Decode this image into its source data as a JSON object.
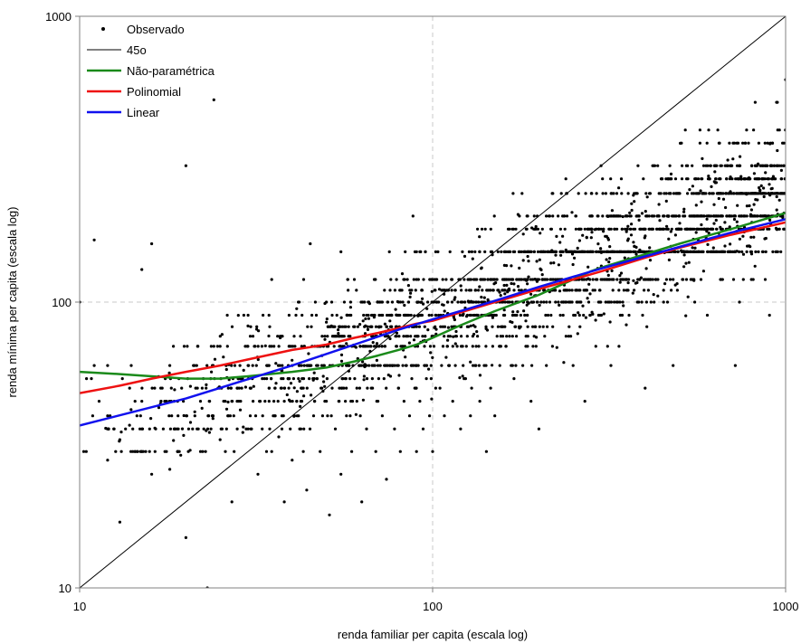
{
  "chart_data": {
    "type": "scatter",
    "xlabel": "renda familiar per capita (escala log)",
    "ylabel": "renda mínima per capita (escala log)",
    "xscale": "log",
    "yscale": "log",
    "xlim": [
      10,
      1000
    ],
    "ylim": [
      10,
      1000
    ],
    "x_ticks": [
      "10",
      "100",
      "1000"
    ],
    "y_ticks": [
      "10",
      "100",
      "1000"
    ],
    "grid": "dashed at 100 on both axes",
    "legend_position": "top-left",
    "colors": {
      "observado": "#000000",
      "line45": "#000000",
      "nao_parametrica": "#1a8a1a",
      "polinomial": "#ee1111",
      "linear": "#1111ee",
      "grid": "#c8c8c8"
    },
    "legend": [
      {
        "key": "observado",
        "label": "Observado"
      },
      {
        "key": "line45",
        "label": "45o"
      },
      {
        "key": "nao_parametrica",
        "label": "Não-paramétrica"
      },
      {
        "key": "polinomial",
        "label": "Polinomial"
      },
      {
        "key": "linear",
        "label": "Linear"
      }
    ],
    "series": [
      {
        "key": "line45",
        "name": "45o",
        "x": [
          10,
          1000
        ],
        "y": [
          10,
          1000
        ]
      },
      {
        "key": "nao_parametrica",
        "name": "Não-paramétrica",
        "x": [
          10,
          13,
          16,
          20,
          25,
          30,
          40,
          50,
          60,
          70,
          80,
          90,
          100,
          120,
          150,
          200,
          250,
          280,
          300,
          400,
          500,
          700,
          1000
        ],
        "y": [
          57,
          56,
          55,
          54,
          54,
          55,
          57,
          59,
          62,
          65,
          68,
          71,
          75,
          83,
          93,
          106,
          120,
          128,
          132,
          147,
          160,
          180,
          205
        ]
      },
      {
        "key": "polinomial",
        "name": "Polinomial",
        "x": [
          10,
          13,
          16,
          20,
          25,
          30,
          40,
          50,
          60,
          70,
          80,
          90,
          100,
          120,
          150,
          200,
          250,
          300,
          400,
          500,
          700,
          1000
        ],
        "y": [
          48,
          51,
          54,
          57,
          60,
          63,
          68,
          71,
          75,
          78,
          81,
          84,
          86,
          92,
          100,
          111,
          120,
          128,
          143,
          155,
          172,
          190
        ]
      },
      {
        "key": "linear",
        "name": "Linear",
        "x": [
          10,
          20,
          40,
          60,
          80,
          100,
          150,
          200,
          300,
          500,
          700,
          1000
        ],
        "y": [
          37,
          46,
          60,
          71,
          80,
          87,
          101,
          113,
          131,
          156,
          175,
          195
        ]
      }
    ],
    "observado": {
      "name": "Observado",
      "y_levels": [
        30,
        36,
        40,
        45,
        50,
        54,
        60,
        70,
        76,
        82,
        90,
        100,
        110,
        120,
        150,
        180,
        200,
        240,
        270,
        300,
        360,
        400,
        500,
        600
      ],
      "points": [
        [
          10,
          100
        ],
        [
          11,
          165
        ],
        [
          11,
          60
        ],
        [
          12,
          60
        ],
        [
          12,
          40
        ],
        [
          12,
          28
        ],
        [
          13,
          17
        ],
        [
          13,
          33
        ],
        [
          14,
          60
        ],
        [
          15,
          130
        ],
        [
          15,
          45
        ],
        [
          16,
          25
        ],
        [
          16,
          160
        ],
        [
          17,
          45
        ],
        [
          18,
          26
        ],
        [
          18,
          60
        ],
        [
          19,
          40
        ],
        [
          20,
          15
        ],
        [
          20,
          300
        ],
        [
          21,
          60
        ],
        [
          22,
          30
        ],
        [
          22,
          45
        ],
        [
          23,
          10
        ],
        [
          24,
          70
        ],
        [
          24,
          510
        ],
        [
          25,
          33
        ],
        [
          26,
          60
        ],
        [
          27,
          20
        ],
        [
          28,
          50
        ],
        [
          29,
          35
        ],
        [
          30,
          90
        ],
        [
          30,
          60
        ],
        [
          31,
          45
        ],
        [
          32,
          25
        ],
        [
          33,
          40
        ],
        [
          34,
          60
        ],
        [
          35,
          120
        ],
        [
          35,
          30
        ],
        [
          36,
          52
        ],
        [
          37,
          75
        ],
        [
          38,
          20
        ],
        [
          38,
          45
        ],
        [
          40,
          60
        ],
        [
          40,
          28
        ],
        [
          41,
          90
        ],
        [
          42,
          36
        ],
        [
          43,
          50
        ],
        [
          44,
          22
        ],
        [
          45,
          60
        ],
        [
          45,
          160
        ],
        [
          46,
          40
        ],
        [
          47,
          70
        ],
        [
          48,
          30
        ],
        [
          49,
          55
        ],
        [
          50,
          45
        ],
        [
          50,
          100
        ],
        [
          51,
          18
        ],
        [
          52,
          60
        ],
        [
          53,
          36
        ],
        [
          54,
          80
        ],
        [
          55,
          25
        ],
        [
          55,
          150
        ],
        [
          56,
          50
        ],
        [
          57,
          40
        ],
        [
          58,
          60
        ],
        [
          59,
          30
        ],
        [
          60,
          70
        ],
        [
          60,
          120
        ],
        [
          61,
          45
        ],
        [
          62,
          60
        ],
        [
          63,
          20
        ],
        [
          64,
          55
        ],
        [
          65,
          90
        ],
        [
          65,
          36
        ],
        [
          66,
          60
        ],
        [
          67,
          50
        ],
        [
          68,
          75
        ],
        [
          69,
          30
        ],
        [
          70,
          60
        ],
        [
          70,
          45
        ],
        [
          71,
          100
        ],
        [
          72,
          40
        ],
        [
          73,
          60
        ],
        [
          74,
          24
        ],
        [
          75,
          80
        ],
        [
          76,
          55
        ],
        [
          77,
          60
        ],
        [
          78,
          36
        ],
        [
          79,
          120
        ],
        [
          80,
          50
        ],
        [
          80,
          60
        ],
        [
          81,
          30
        ],
        [
          82,
          70
        ],
        [
          83,
          45
        ],
        [
          84,
          60
        ],
        [
          85,
          90
        ],
        [
          86,
          40
        ],
        [
          87,
          60
        ],
        [
          88,
          200
        ],
        [
          89,
          50
        ],
        [
          90,
          60
        ],
        [
          90,
          30
        ],
        [
          91,
          76
        ],
        [
          92,
          45
        ],
        [
          93,
          100
        ],
        [
          94,
          36
        ],
        [
          95,
          60
        ],
        [
          96,
          54
        ],
        [
          97,
          80
        ],
        [
          98,
          40
        ],
        [
          99,
          60
        ],
        [
          100,
          120
        ],
        [
          100,
          30
        ],
        [
          102,
          50
        ],
        [
          104,
          90
        ],
        [
          106,
          60
        ],
        [
          108,
          40
        ],
        [
          110,
          70
        ],
        [
          112,
          150
        ],
        [
          114,
          45
        ],
        [
          116,
          60
        ],
        [
          118,
          100
        ],
        [
          120,
          36
        ],
        [
          120,
          82
        ],
        [
          122,
          60
        ],
        [
          124,
          54
        ],
        [
          126,
          120
        ],
        [
          128,
          40
        ],
        [
          130,
          76
        ],
        [
          132,
          60
        ],
        [
          134,
          180
        ],
        [
          136,
          45
        ],
        [
          138,
          90
        ],
        [
          140,
          60
        ],
        [
          142,
          30
        ],
        [
          144,
          100
        ],
        [
          146,
          50
        ],
        [
          148,
          70
        ],
        [
          150,
          120
        ],
        [
          150,
          40
        ],
        [
          155,
          60
        ],
        [
          160,
          90
        ],
        [
          165,
          150
        ],
        [
          170,
          54
        ],
        [
          175,
          100
        ],
        [
          180,
          60
        ],
        [
          185,
          200
        ],
        [
          190,
          45
        ],
        [
          195,
          82
        ],
        [
          200,
          120
        ],
        [
          200,
          36
        ],
        [
          210,
          60
        ],
        [
          220,
          150
        ],
        [
          230,
          90
        ],
        [
          240,
          240
        ],
        [
          250,
          60
        ],
        [
          260,
          110
        ],
        [
          270,
          45
        ],
        [
          280,
          180
        ],
        [
          290,
          70
        ],
        [
          300,
          120
        ],
        [
          300,
          300
        ],
        [
          320,
          60
        ],
        [
          340,
          200
        ],
        [
          360,
          90
        ],
        [
          380,
          240
        ],
        [
          400,
          120
        ],
        [
          400,
          50
        ],
        [
          420,
          300
        ],
        [
          450,
          150
        ],
        [
          480,
          60
        ],
        [
          500,
          200
        ],
        [
          520,
          400
        ],
        [
          550,
          120
        ],
        [
          580,
          270
        ],
        [
          600,
          90
        ],
        [
          620,
          180
        ],
        [
          650,
          360
        ],
        [
          700,
          150
        ],
        [
          720,
          60
        ],
        [
          750,
          240
        ],
        [
          800,
          120
        ],
        [
          820,
          500
        ],
        [
          850,
          200
        ],
        [
          880,
          300
        ],
        [
          900,
          90
        ],
        [
          920,
          150
        ],
        [
          950,
          400
        ],
        [
          980,
          240
        ],
        [
          1000,
          600
        ]
      ]
    }
  }
}
